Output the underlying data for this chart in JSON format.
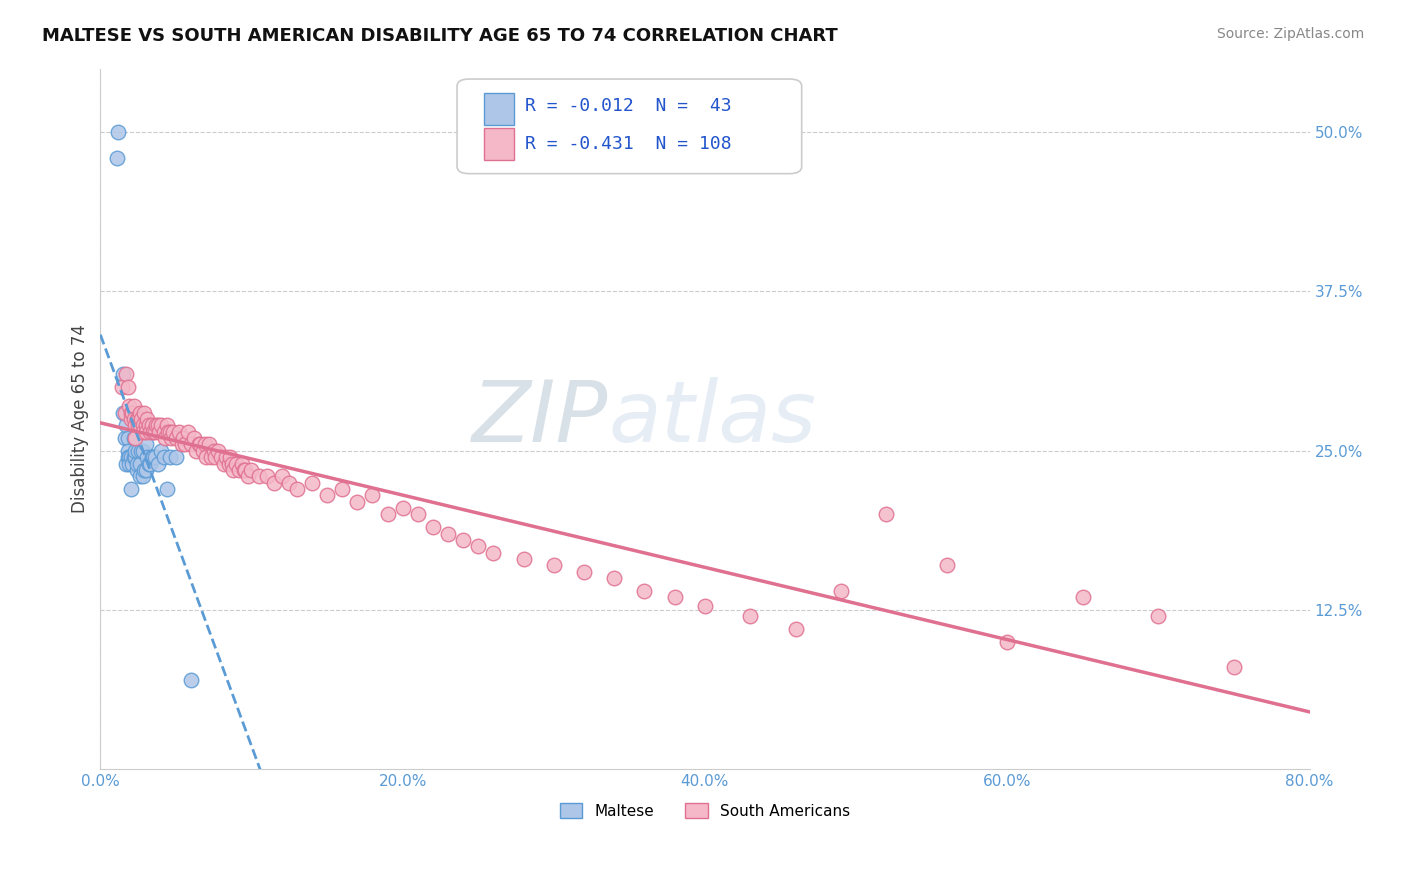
{
  "title": "MALTESE VS SOUTH AMERICAN DISABILITY AGE 65 TO 74 CORRELATION CHART",
  "source": "Source: ZipAtlas.com",
  "ylabel": "Disability Age 65 to 74",
  "xlim": [
    0.0,
    80.0
  ],
  "ylim": [
    0.0,
    55.0
  ],
  "xticks": [
    0.0,
    20.0,
    40.0,
    60.0,
    80.0
  ],
  "xticklabels": [
    "0.0%",
    "20.0%",
    "40.0%",
    "60.0%",
    "80.0%"
  ],
  "yticks_right": [
    12.5,
    25.0,
    37.5,
    50.0
  ],
  "yticklabels_right": [
    "12.5%",
    "25.0%",
    "37.5%",
    "50.0%"
  ],
  "maltese_color": "#aec6e8",
  "maltese_edge": "#5b9bd5",
  "south_american_color": "#f4b8c8",
  "south_american_edge": "#e07090",
  "trend_maltese_color": "#5b9bd5",
  "trend_south_american_color": "#e07090",
  "R_maltese": "-0.012",
  "N_maltese": "43",
  "R_south_american": "-0.431",
  "N_south_american": "108",
  "watermark": "ZIPatlas",
  "maltese_x": [
    1.1,
    1.2,
    1.5,
    1.5,
    1.6,
    1.7,
    1.7,
    1.8,
    1.8,
    1.8,
    1.9,
    1.9,
    2.0,
    2.0,
    2.1,
    2.2,
    2.2,
    2.3,
    2.3,
    2.4,
    2.4,
    2.5,
    2.6,
    2.6,
    2.7,
    2.8,
    2.8,
    2.9,
    3.0,
    3.0,
    3.1,
    3.2,
    3.3,
    3.4,
    3.5,
    3.6,
    3.8,
    4.0,
    4.2,
    4.4,
    4.6,
    5.0,
    6.0
  ],
  "maltese_y": [
    48.0,
    50.0,
    31.0,
    28.0,
    26.0,
    27.0,
    24.0,
    26.0,
    25.0,
    24.5,
    24.5,
    24.0,
    24.5,
    22.0,
    24.0,
    26.0,
    24.5,
    24.5,
    25.0,
    23.5,
    24.0,
    25.0,
    24.0,
    23.0,
    25.0,
    25.0,
    23.0,
    23.5,
    25.5,
    23.5,
    24.5,
    24.0,
    24.0,
    24.5,
    24.5,
    24.5,
    24.0,
    25.0,
    24.5,
    22.0,
    24.5,
    24.5,
    7.0
  ],
  "south_american_x": [
    1.4,
    1.6,
    1.7,
    1.8,
    1.9,
    2.0,
    2.0,
    2.1,
    2.2,
    2.2,
    2.3,
    2.3,
    2.4,
    2.5,
    2.5,
    2.6,
    2.6,
    2.7,
    2.8,
    2.8,
    2.9,
    3.0,
    3.0,
    3.1,
    3.2,
    3.3,
    3.4,
    3.5,
    3.6,
    3.7,
    3.8,
    3.9,
    4.0,
    4.2,
    4.3,
    4.4,
    4.5,
    4.6,
    4.7,
    4.8,
    5.0,
    5.2,
    5.4,
    5.5,
    5.6,
    5.8,
    6.0,
    6.2,
    6.3,
    6.5,
    6.6,
    6.8,
    6.9,
    7.0,
    7.2,
    7.3,
    7.5,
    7.6,
    7.8,
    8.0,
    8.2,
    8.3,
    8.5,
    8.6,
    8.7,
    8.8,
    9.0,
    9.2,
    9.4,
    9.5,
    9.6,
    9.8,
    10.0,
    10.5,
    11.0,
    11.5,
    12.0,
    12.5,
    13.0,
    14.0,
    15.0,
    16.0,
    17.0,
    18.0,
    19.0,
    20.0,
    21.0,
    22.0,
    23.0,
    24.0,
    25.0,
    26.0,
    28.0,
    30.0,
    32.0,
    34.0,
    36.0,
    38.0,
    40.0,
    43.0,
    46.0,
    49.0,
    52.0,
    56.0,
    60.0,
    65.0,
    70.0,
    75.0
  ],
  "south_american_y": [
    30.0,
    28.0,
    31.0,
    30.0,
    28.5,
    28.0,
    27.5,
    28.0,
    28.5,
    27.5,
    27.0,
    26.0,
    27.5,
    27.5,
    27.0,
    28.0,
    27.0,
    27.5,
    27.0,
    26.5,
    28.0,
    27.0,
    26.5,
    27.5,
    27.0,
    26.5,
    27.0,
    26.5,
    26.5,
    27.0,
    27.0,
    26.5,
    27.0,
    26.5,
    26.0,
    27.0,
    26.5,
    26.5,
    26.0,
    26.5,
    26.0,
    26.5,
    25.5,
    26.0,
    25.5,
    26.5,
    25.5,
    26.0,
    25.0,
    25.5,
    25.5,
    25.0,
    25.5,
    24.5,
    25.5,
    24.5,
    25.0,
    24.5,
    25.0,
    24.5,
    24.0,
    24.5,
    24.0,
    24.5,
    24.0,
    23.5,
    24.0,
    23.5,
    24.0,
    23.5,
    23.5,
    23.0,
    23.5,
    23.0,
    23.0,
    22.5,
    23.0,
    22.5,
    22.0,
    22.5,
    21.5,
    22.0,
    21.0,
    21.5,
    20.0,
    20.5,
    20.0,
    19.0,
    18.5,
    18.0,
    17.5,
    17.0,
    16.5,
    16.0,
    15.5,
    15.0,
    14.0,
    13.5,
    12.8,
    12.0,
    11.0,
    14.0,
    20.0,
    16.0,
    10.0,
    13.5,
    12.0,
    8.0
  ]
}
